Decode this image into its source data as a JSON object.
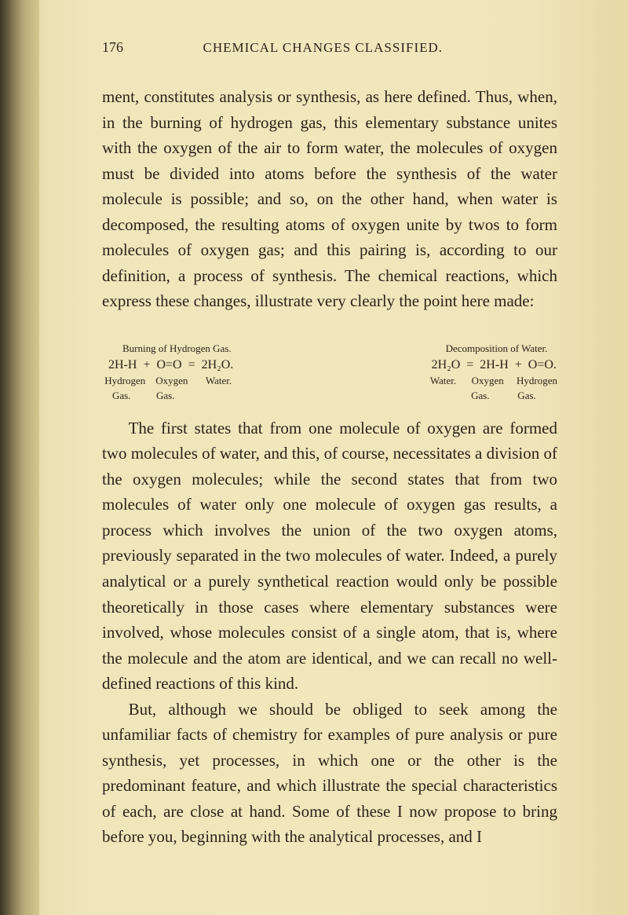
{
  "page": {
    "number": "176",
    "header": "CHEMICAL CHANGES CLASSIFIED."
  },
  "paragraphs": {
    "p1": "ment, constitutes analysis or synthesis, as here defined. Thus, when, in the burning of hydrogen gas, this elementary substance unites with the oxygen of the air to form water, the molecules of oxygen must be divided into atoms before the synthesis of the water molecule is possible; and so, on the other hand, when water is decomposed, the resulting atoms of oxygen unite by twos to form molecules of oxygen gas; and this pairing is, according to our definition, a process of synthesis. The chemical reactions, which express these changes, illustrate very clearly the point here made:",
    "p2": "The first states that from one molecule of oxygen are formed two molecules of water, and this, of course, necessitates a division of the oxygen molecules; while the second states that from two molecules of water only one molecule of oxygen gas results, a process which involves the union of the two oxygen atoms, previously separated in the two molecules of water. Indeed, a purely analytical or a purely synthetical reaction would only be possible theoretically in those cases where elementary substances were involved, whose molecules consist of a single atom, that is, where the molecule and the atom are identical, and we can recall no well-defined reactions of this kind.",
    "p3": "But, although we should be obliged to seek among the unfamiliar facts of chemistry for examples of pure analysis or pure synthesis, yet processes, in which one or the other is the predominant feature, and which illustrate the special characteristics of each, are close at hand. Some of these I now propose to bring before you, beginning with the analytical processes, and I"
  },
  "equations": {
    "left": {
      "title": "        Burning of Hydrogen Gas.",
      "main": "  2H-H  +  O=O  =  2H₂O.",
      "labels1": " Hydrogen    Oxygen       Water.",
      "labels2": "    Gas.          Gas."
    },
    "right": {
      "title": "        Decomposition of Water.",
      "main": "  2H₂O  =  2H-H  +  O=O.",
      "labels1": "  Water.      Oxygen     Hydrogen",
      "labels2": "                  Gas.           Gas."
    }
  }
}
